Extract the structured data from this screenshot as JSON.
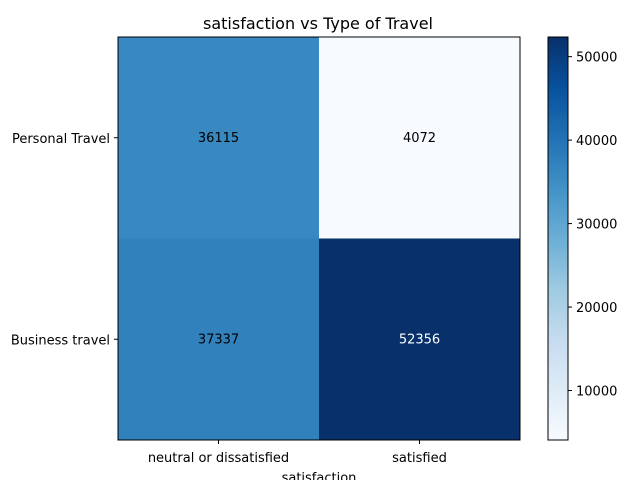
{
  "chart_data": {
    "type": "heatmap",
    "title": "satisfaction vs Type of Travel",
    "xlabel": "satisfaction",
    "ylabel": "",
    "x_categories": [
      "neutral or dissatisfied",
      "satisfied"
    ],
    "y_categories": [
      "Personal Travel",
      "Business travel"
    ],
    "values": [
      [
        36115,
        4072
      ],
      [
        37337,
        52356
      ]
    ],
    "colormap": "Blues",
    "colorbar": {
      "range": [
        4072,
        52356
      ],
      "ticks": [
        10000,
        20000,
        30000,
        40000,
        50000
      ],
      "tick_labels": [
        "10000",
        "20000",
        "30000",
        "40000",
        "50000"
      ]
    }
  }
}
